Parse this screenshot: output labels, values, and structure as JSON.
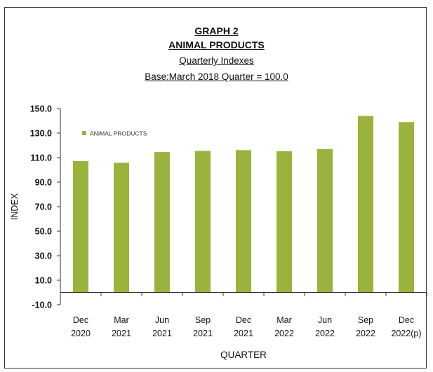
{
  "chart_data": {
    "type": "bar",
    "title_lines": [
      "GRAPH 2",
      "ANIMAL PRODUCTS",
      "Quarterly Indexes",
      "Base:March 2018 Quarter = 100.0"
    ],
    "xlabel": "QUARTER",
    "ylabel": "INDEX",
    "ylim": [
      -10,
      150
    ],
    "yticks": [
      "150.0",
      "130.0",
      "110.0",
      "90.0",
      "70.0",
      "50.0",
      "30.0",
      "10.0",
      "-10.0"
    ],
    "ytick_values": [
      150,
      130,
      110,
      90,
      70,
      50,
      30,
      10,
      -10
    ],
    "categories": [
      [
        "Dec",
        "2020"
      ],
      [
        "Mar",
        "2021"
      ],
      [
        "Jun",
        "2021"
      ],
      [
        "Sep",
        "2021"
      ],
      [
        "Dec",
        "2021"
      ],
      [
        "Mar",
        "2022"
      ],
      [
        "Jun",
        "2022"
      ],
      [
        "Sep",
        "2022"
      ],
      [
        "Dec",
        "2022(p)"
      ]
    ],
    "series": [
      {
        "name": "ANIMAL PRODUCTS",
        "color": "#9ab33c",
        "values": [
          107.2,
          105.8,
          114.5,
          115.5,
          116.1,
          115.3,
          117.0,
          144.0,
          139.0
        ]
      }
    ],
    "legend_position": "top-left",
    "grid": false
  }
}
